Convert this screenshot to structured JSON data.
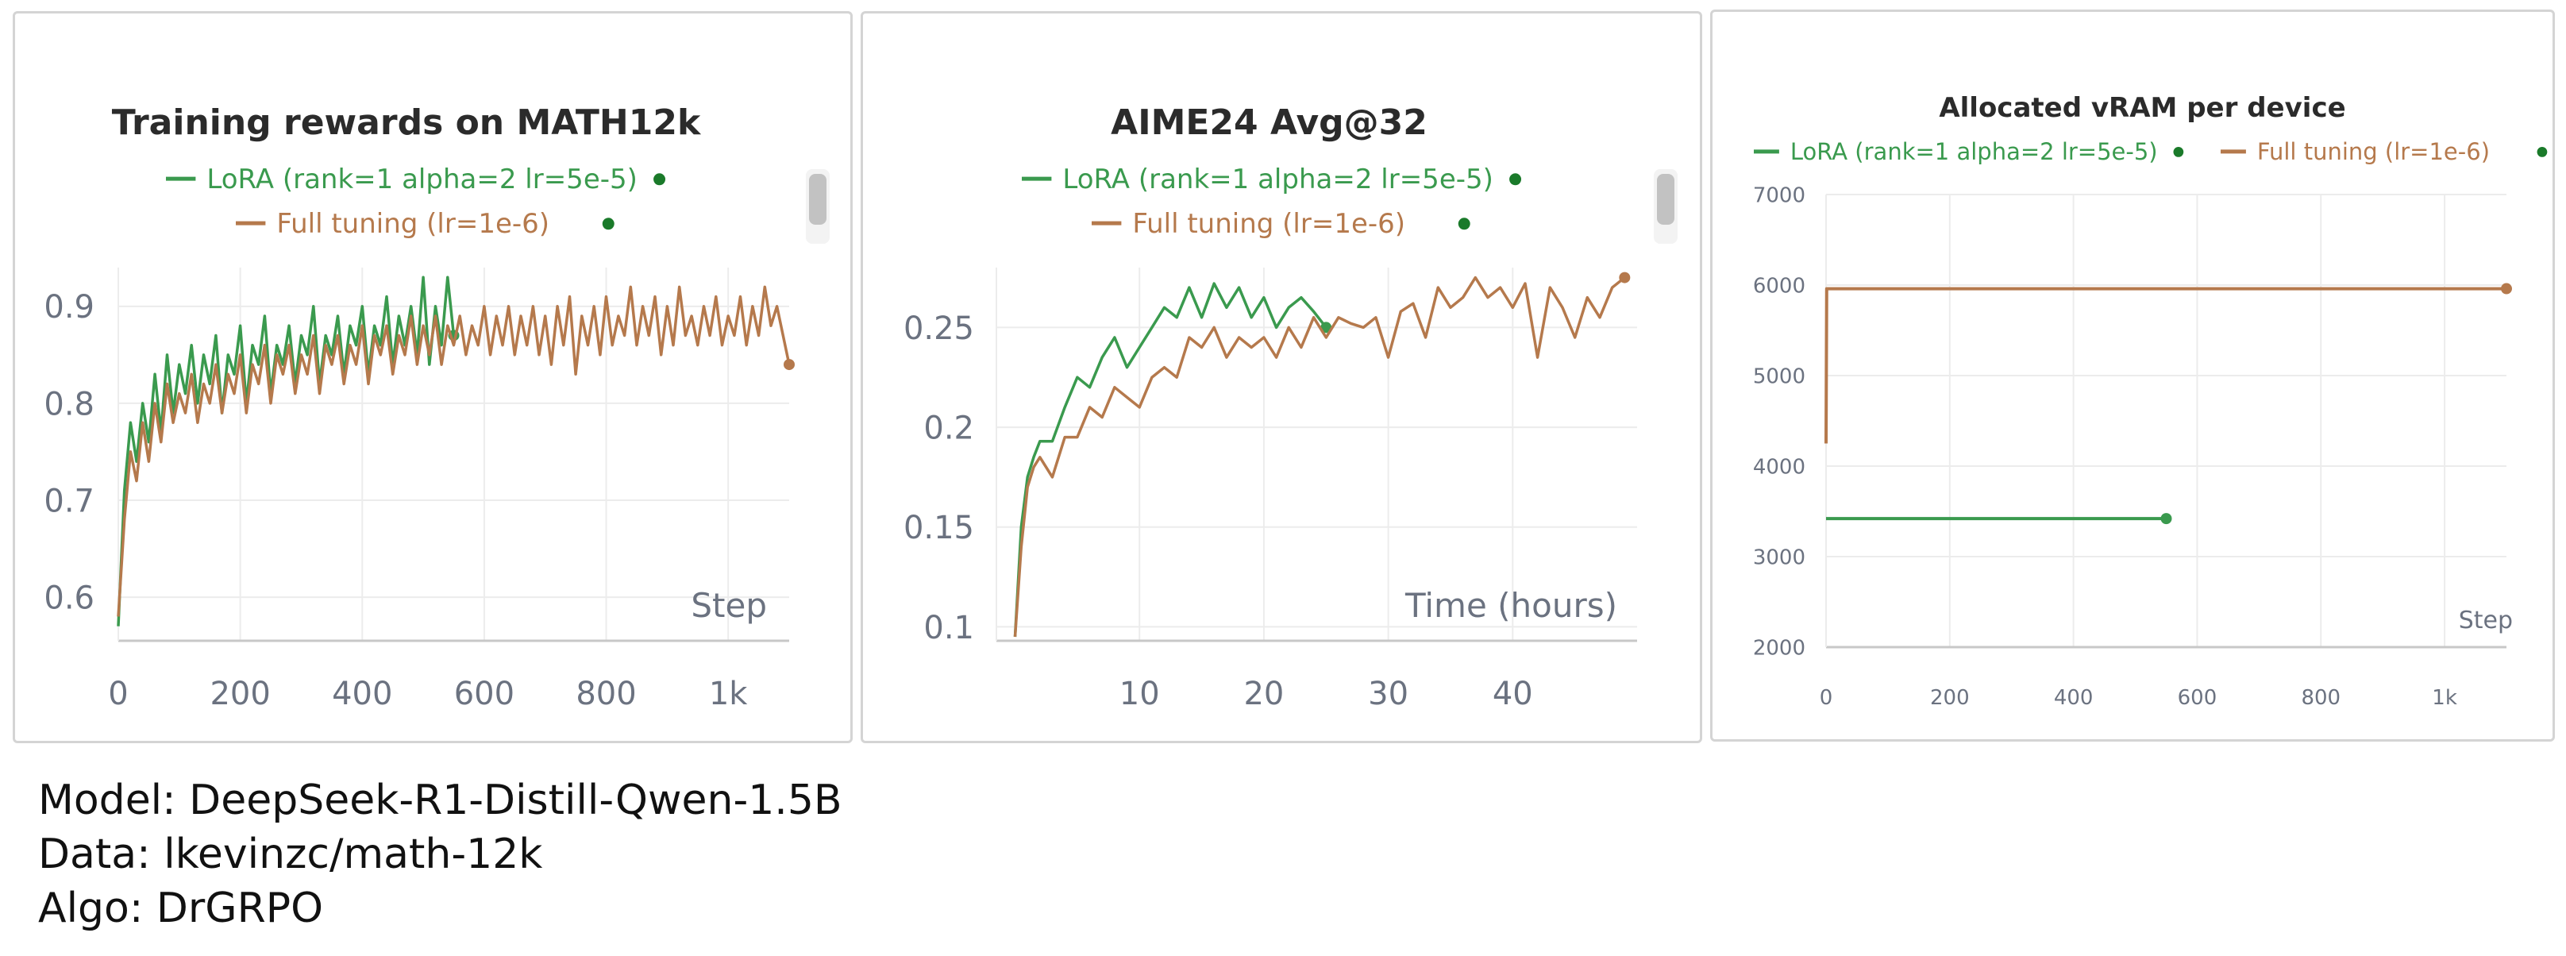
{
  "colors": {
    "lora": "#3a9a4e",
    "full": "#b5794c",
    "dot": "#1a7a2a",
    "grid": "#ececec",
    "axis": "#c8c8c8",
    "tick": "#6b7280"
  },
  "caption": {
    "model": "Model: DeepSeek-R1-Distill-Qwen-1.5B",
    "data": "Data: lkevinzc/math-12k",
    "algo": "Algo: DrGRPO"
  },
  "chart_data": [
    {
      "type": "line",
      "title": "Training rewards on MATH12k",
      "xlabel": "Step",
      "ylabel": "",
      "xlim": [
        0,
        1100
      ],
      "ylim": [
        0.555,
        0.94
      ],
      "x_ticks": [
        0,
        200,
        400,
        600,
        800,
        1000
      ],
      "x_tick_labels": [
        "0",
        "200",
        "400",
        "600",
        "800",
        "1k"
      ],
      "y_ticks": [
        0.6,
        0.7,
        0.8,
        0.9
      ],
      "y_tick_labels": [
        "0.6",
        "0.7",
        "0.8",
        "0.9"
      ],
      "legend_placement": "top-center",
      "series": [
        {
          "name": "LoRA (rank=1 alpha=2 lr=5e-5)",
          "x": [
            0,
            10,
            20,
            30,
            40,
            50,
            60,
            70,
            80,
            90,
            100,
            110,
            120,
            130,
            140,
            150,
            160,
            170,
            180,
            190,
            200,
            210,
            220,
            230,
            240,
            250,
            260,
            270,
            280,
            290,
            300,
            310,
            320,
            330,
            340,
            350,
            360,
            370,
            380,
            390,
            400,
            410,
            420,
            430,
            440,
            450,
            460,
            470,
            480,
            490,
            500,
            510,
            520,
            530,
            540,
            550
          ],
          "y": [
            0.57,
            0.71,
            0.78,
            0.74,
            0.8,
            0.76,
            0.83,
            0.77,
            0.85,
            0.79,
            0.84,
            0.81,
            0.86,
            0.8,
            0.85,
            0.82,
            0.87,
            0.79,
            0.85,
            0.83,
            0.88,
            0.8,
            0.86,
            0.84,
            0.89,
            0.81,
            0.86,
            0.84,
            0.88,
            0.82,
            0.87,
            0.85,
            0.9,
            0.82,
            0.87,
            0.85,
            0.89,
            0.83,
            0.88,
            0.86,
            0.9,
            0.83,
            0.88,
            0.86,
            0.91,
            0.84,
            0.89,
            0.86,
            0.9,
            0.85,
            0.93,
            0.84,
            0.9,
            0.86,
            0.93,
            0.87
          ]
        },
        {
          "name": "Full tuning (lr=1e-6)",
          "x": [
            0,
            10,
            20,
            30,
            40,
            50,
            60,
            70,
            80,
            90,
            100,
            110,
            120,
            130,
            140,
            150,
            160,
            170,
            180,
            190,
            200,
            210,
            220,
            230,
            240,
            250,
            260,
            270,
            280,
            290,
            300,
            310,
            320,
            330,
            340,
            350,
            360,
            370,
            380,
            390,
            400,
            410,
            420,
            430,
            440,
            450,
            460,
            470,
            480,
            490,
            500,
            510,
            520,
            530,
            540,
            550,
            560,
            570,
            580,
            590,
            600,
            610,
            620,
            630,
            640,
            650,
            660,
            670,
            680,
            690,
            700,
            710,
            720,
            730,
            740,
            750,
            760,
            770,
            780,
            790,
            800,
            810,
            820,
            830,
            840,
            850,
            860,
            870,
            880,
            890,
            900,
            910,
            920,
            930,
            940,
            950,
            960,
            970,
            980,
            990,
            1000,
            1010,
            1020,
            1030,
            1040,
            1050,
            1060,
            1070,
            1080,
            1090,
            1100
          ],
          "y": [
            0.58,
            0.68,
            0.75,
            0.72,
            0.78,
            0.74,
            0.8,
            0.76,
            0.82,
            0.78,
            0.81,
            0.79,
            0.83,
            0.78,
            0.82,
            0.8,
            0.84,
            0.79,
            0.83,
            0.81,
            0.85,
            0.79,
            0.84,
            0.82,
            0.86,
            0.8,
            0.85,
            0.83,
            0.86,
            0.81,
            0.85,
            0.83,
            0.87,
            0.81,
            0.86,
            0.84,
            0.87,
            0.82,
            0.86,
            0.84,
            0.88,
            0.82,
            0.87,
            0.85,
            0.88,
            0.83,
            0.87,
            0.85,
            0.89,
            0.84,
            0.88,
            0.85,
            0.89,
            0.84,
            0.88,
            0.86,
            0.89,
            0.85,
            0.88,
            0.86,
            0.9,
            0.85,
            0.89,
            0.86,
            0.9,
            0.85,
            0.89,
            0.86,
            0.9,
            0.85,
            0.89,
            0.84,
            0.9,
            0.86,
            0.91,
            0.83,
            0.89,
            0.86,
            0.9,
            0.85,
            0.91,
            0.86,
            0.89,
            0.87,
            0.92,
            0.86,
            0.9,
            0.87,
            0.91,
            0.85,
            0.9,
            0.86,
            0.92,
            0.87,
            0.89,
            0.86,
            0.9,
            0.87,
            0.91,
            0.86,
            0.89,
            0.87,
            0.91,
            0.86,
            0.9,
            0.87,
            0.92,
            0.88,
            0.9,
            0.87,
            0.84
          ]
        }
      ]
    },
    {
      "type": "line",
      "title": "AIME24 Avg@32",
      "xlabel": "Time (hours)",
      "ylabel": "",
      "xlim": [
        -1.5,
        50
      ],
      "ylim": [
        0.093,
        0.28
      ],
      "x_ticks": [
        10,
        20,
        30,
        40
      ],
      "x_tick_labels": [
        "10",
        "20",
        "30",
        "40"
      ],
      "y_ticks": [
        0.1,
        0.15,
        0.2,
        0.25
      ],
      "y_tick_labels": [
        "0.1",
        "0.15",
        "0.2",
        "0.25"
      ],
      "legend_placement": "top-center",
      "series": [
        {
          "name": "LoRA (rank=1 alpha=2 lr=5e-5)",
          "x": [
            0,
            0.5,
            1,
            1.5,
            2,
            3,
            4,
            5,
            6,
            7,
            8,
            9,
            10,
            11,
            12,
            13,
            14,
            15,
            16,
            17,
            18,
            19,
            20,
            21,
            22,
            23,
            24,
            25
          ],
          "y": [
            0.095,
            0.15,
            0.175,
            0.185,
            0.193,
            0.193,
            0.21,
            0.225,
            0.22,
            0.235,
            0.245,
            0.23,
            0.24,
            0.25,
            0.26,
            0.255,
            0.27,
            0.255,
            0.272,
            0.26,
            0.27,
            0.255,
            0.265,
            0.25,
            0.26,
            0.265,
            0.258,
            0.25
          ]
        },
        {
          "name": "Full tuning (lr=1e-6)",
          "x": [
            0,
            0.5,
            1,
            1.5,
            2,
            3,
            4,
            5,
            6,
            7,
            8,
            9,
            10,
            11,
            12,
            13,
            14,
            15,
            16,
            17,
            18,
            19,
            20,
            21,
            22,
            23,
            24,
            25,
            26,
            27,
            28,
            29,
            30,
            31,
            32,
            33,
            34,
            35,
            36,
            37,
            38,
            39,
            40,
            41,
            42,
            43,
            44,
            45,
            46,
            47,
            48,
            49
          ],
          "y": [
            0.095,
            0.14,
            0.17,
            0.18,
            0.185,
            0.175,
            0.195,
            0.195,
            0.21,
            0.205,
            0.22,
            0.215,
            0.21,
            0.225,
            0.23,
            0.225,
            0.245,
            0.24,
            0.25,
            0.235,
            0.245,
            0.24,
            0.245,
            0.235,
            0.25,
            0.24,
            0.255,
            0.245,
            0.255,
            0.252,
            0.25,
            0.255,
            0.235,
            0.258,
            0.262,
            0.245,
            0.27,
            0.26,
            0.265,
            0.275,
            0.265,
            0.27,
            0.26,
            0.272,
            0.235,
            0.27,
            0.26,
            0.245,
            0.265,
            0.255,
            0.27,
            0.275
          ]
        }
      ]
    },
    {
      "type": "line",
      "title": "Allocated vRAM per device",
      "xlabel": "Step",
      "ylabel": "",
      "xlim": [
        0,
        1100
      ],
      "ylim": [
        2000,
        7000
      ],
      "x_ticks": [
        0,
        200,
        400,
        600,
        800,
        1000
      ],
      "x_tick_labels": [
        "0",
        "200",
        "400",
        "600",
        "800",
        "1k"
      ],
      "y_ticks": [
        2000,
        3000,
        4000,
        5000,
        6000,
        7000
      ],
      "y_tick_labels": [
        "2000",
        "3000",
        "4000",
        "5000",
        "6000",
        "7000"
      ],
      "legend_placement": "top-center",
      "series": [
        {
          "name": "LoRA (rank=1 alpha=2 lr=5e-5)",
          "x": [
            0,
            1,
            550
          ],
          "y": [
            3420,
            3420,
            3420
          ]
        },
        {
          "name": "Full tuning (lr=1e-6)",
          "x": [
            0,
            1,
            1100
          ],
          "y": [
            4250,
            5960,
            5960
          ]
        }
      ]
    }
  ]
}
